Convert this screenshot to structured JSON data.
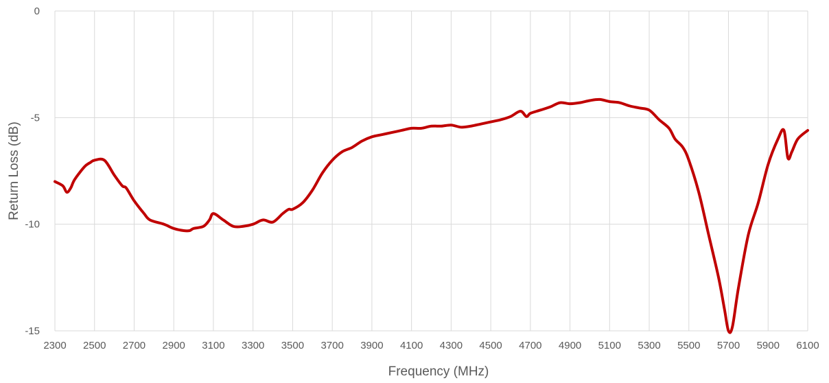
{
  "chart_data": {
    "type": "line",
    "title": "",
    "xlabel": "Frequency (MHz)",
    "ylabel": "Return Loss (dB)",
    "xlim": [
      2300,
      6100
    ],
    "ylim": [
      -15,
      0
    ],
    "x_ticks": [
      2300,
      2500,
      2700,
      2900,
      3100,
      3300,
      3500,
      3700,
      3900,
      4100,
      4300,
      4500,
      4700,
      4900,
      5100,
      5300,
      5500,
      5700,
      5900,
      6100
    ],
    "y_ticks": [
      0,
      -5,
      -10,
      -15
    ],
    "x_tick_labels": [
      "2300",
      "2500",
      "2700",
      "2900",
      "3100",
      "3300",
      "3500",
      "3700",
      "3900",
      "4100",
      "4300",
      "4500",
      "4700",
      "4900",
      "5100",
      "5300",
      "5500",
      "5700",
      "5900",
      "6100"
    ],
    "y_tick_labels": [
      "0",
      "-5",
      "-10",
      "-15"
    ],
    "grid": "vertical and horizontal",
    "legend": "none",
    "series": [
      {
        "color": "#c00000",
        "x": [
          2300,
          2340,
          2360,
          2380,
          2400,
          2450,
          2480,
          2500,
          2550,
          2600,
          2640,
          2660,
          2700,
          2750,
          2780,
          2850,
          2900,
          2950,
          2980,
          3000,
          3050,
          3080,
          3100,
          3150,
          3200,
          3250,
          3300,
          3350,
          3400,
          3450,
          3480,
          3500,
          3550,
          3600,
          3650,
          3700,
          3750,
          3800,
          3850,
          3900,
          3950,
          4000,
          4050,
          4100,
          4150,
          4200,
          4250,
          4300,
          4350,
          4400,
          4450,
          4500,
          4550,
          4600,
          4650,
          4680,
          4700,
          4750,
          4800,
          4850,
          4900,
          4950,
          5000,
          5050,
          5100,
          5150,
          5200,
          5250,
          5300,
          5350,
          5400,
          5430,
          5470,
          5500,
          5550,
          5600,
          5650,
          5680,
          5700,
          5720,
          5750,
          5800,
          5850,
          5900,
          5950,
          5980,
          6000,
          6020,
          6050,
          6100
        ],
        "y": [
          -8.0,
          -8.2,
          -8.5,
          -8.3,
          -7.9,
          -7.3,
          -7.1,
          -7.0,
          -7.0,
          -7.7,
          -8.2,
          -8.3,
          -8.9,
          -9.5,
          -9.8,
          -10.0,
          -10.2,
          -10.3,
          -10.3,
          -10.2,
          -10.1,
          -9.8,
          -9.5,
          -9.8,
          -10.1,
          -10.1,
          -10.0,
          -9.8,
          -9.9,
          -9.5,
          -9.3,
          -9.3,
          -9.0,
          -8.4,
          -7.6,
          -7.0,
          -6.6,
          -6.4,
          -6.1,
          -5.9,
          -5.8,
          -5.7,
          -5.6,
          -5.5,
          -5.5,
          -5.4,
          -5.4,
          -5.35,
          -5.45,
          -5.4,
          -5.3,
          -5.2,
          -5.1,
          -4.95,
          -4.7,
          -4.95,
          -4.8,
          -4.65,
          -4.5,
          -4.3,
          -4.35,
          -4.3,
          -4.2,
          -4.15,
          -4.25,
          -4.3,
          -4.45,
          -4.55,
          -4.65,
          -5.1,
          -5.5,
          -6.0,
          -6.4,
          -7.0,
          -8.5,
          -10.5,
          -12.5,
          -14.0,
          -15.0,
          -14.8,
          -13.0,
          -10.5,
          -9.0,
          -7.2,
          -6.0,
          -5.6,
          -6.9,
          -6.6,
          -6.0,
          -5.6
        ]
      }
    ]
  }
}
